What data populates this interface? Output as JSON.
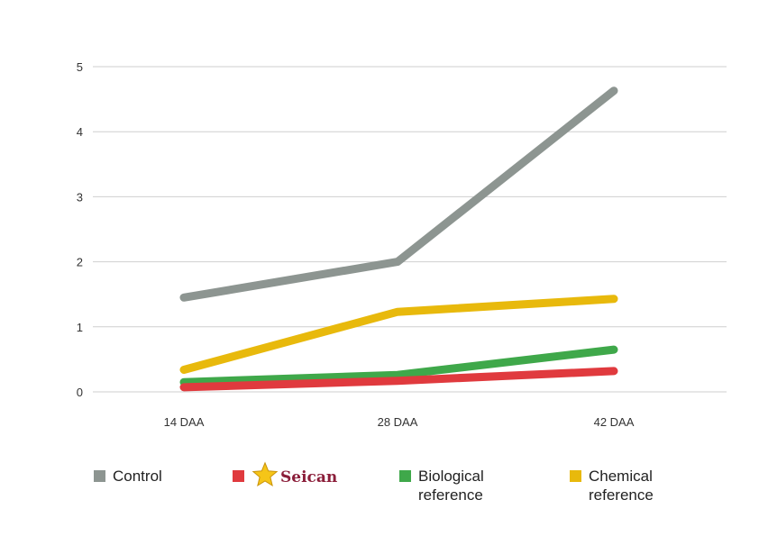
{
  "chart_data": {
    "type": "line",
    "categories": [
      "14 DAA",
      "28 DAA",
      "42 DAA"
    ],
    "ylim": [
      0,
      5
    ],
    "yticks": [
      "0",
      "1",
      "2",
      "3",
      "4",
      "5"
    ],
    "grid": true,
    "legend_position": "bottom",
    "series": [
      {
        "name": "Control",
        "color": "#8d9591",
        "values": [
          1.45,
          2.0,
          4.63
        ]
      },
      {
        "name": "Seican",
        "color": "#e03a3e",
        "values": [
          0.07,
          0.17,
          0.32
        ]
      },
      {
        "name": "Biological reference",
        "color": "#3fa84a",
        "values": [
          0.15,
          0.26,
          0.65
        ]
      },
      {
        "name": "Chemical reference",
        "color": "#e8b90c",
        "values": [
          0.34,
          1.23,
          1.43
        ]
      }
    ]
  },
  "legend": {
    "control": {
      "lines": [
        "Control"
      ],
      "color": "#8d9591"
    },
    "seican": {
      "brand": "Seican",
      "color": "#e03a3e",
      "star_color": "#f5c518"
    },
    "biological": {
      "lines": [
        "Biological",
        "reference"
      ],
      "color": "#3fa84a"
    },
    "chemical": {
      "lines": [
        "Chemical",
        "reference"
      ],
      "color": "#e8b90c"
    }
  }
}
